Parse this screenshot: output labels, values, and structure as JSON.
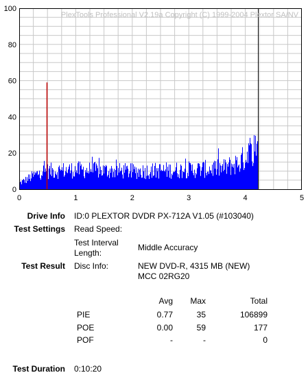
{
  "chart_data": {
    "type": "bar",
    "watermark": "PlexTools Professional V2.19a Copyright (C) 1999-2004 Plextor SA/NV",
    "xlim": [
      0,
      5
    ],
    "ylim": [
      0,
      100
    ],
    "x_ticks": [
      "0",
      "1",
      "2",
      "3",
      "4",
      "5"
    ],
    "y_ticks": [
      "0",
      "20",
      "40",
      "60",
      "80",
      "100"
    ],
    "grid": true,
    "bar_color": "#0000ff",
    "series": [
      {
        "name": "PIE",
        "shape": {
          "x_start": 0.0,
          "x_end": 4.22,
          "levels": [
            [
              0.0,
              4
            ],
            [
              0.2,
              8
            ],
            [
              0.4,
              12
            ],
            [
              1.0,
              13
            ],
            [
              2.0,
              12
            ],
            [
              3.0,
              13
            ],
            [
              3.6,
              14
            ],
            [
              3.9,
              18
            ],
            [
              4.05,
              24
            ],
            [
              4.22,
              30
            ]
          ]
        },
        "color": "#0000ff"
      },
      {
        "name": "POE",
        "x": [
          0.49
        ],
        "values": [
          59
        ],
        "color": "#c00000"
      }
    ],
    "end_marker": {
      "x": 4.22,
      "color": "#000000"
    }
  },
  "info": {
    "drive_info_label": "Drive Info",
    "drive_info_value": "ID:0 PLEXTOR DVDR PX-712A V1.05 (#103040)",
    "test_settings_label": "Test Settings",
    "read_speed_label": "Read Speed:",
    "read_speed_value": "",
    "interval_label_1": "Test Interval",
    "interval_label_2": "Length:",
    "interval_value": "Middle Accuracy",
    "test_result_label": "Test Result",
    "disc_info_label": "Disc Info:",
    "disc_info_value_1": "NEW DVD-R, 4315 MB (NEW)",
    "disc_info_value_2": "MCC 02RG20",
    "test_duration_label": "Test Duration",
    "test_duration_value": "0:10:20"
  },
  "results": {
    "headers": {
      "avg": "Avg",
      "max": "Max",
      "total": "Total"
    },
    "rows": [
      {
        "name": "PIE",
        "avg": "0.77",
        "max": "35",
        "total": "106899"
      },
      {
        "name": "POE",
        "avg": "0.00",
        "max": "59",
        "total": "177"
      },
      {
        "name": "POF",
        "avg": "-",
        "max": "-",
        "total": "0"
      }
    ]
  }
}
